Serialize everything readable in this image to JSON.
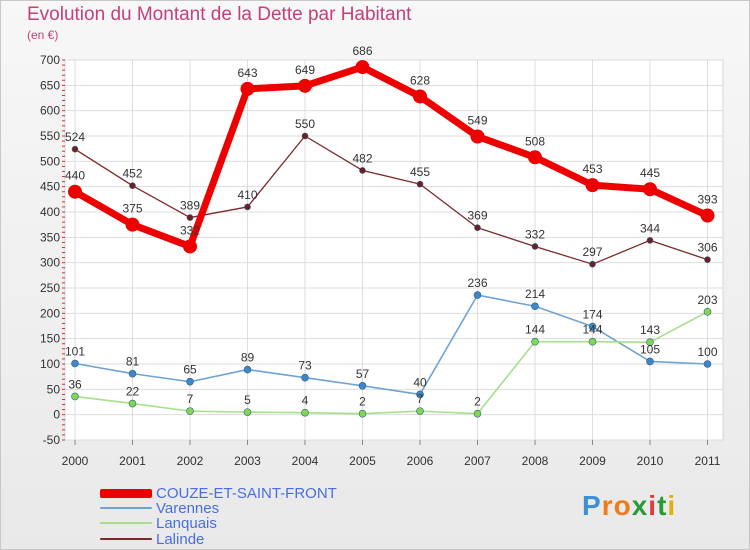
{
  "title": "Evolution du Montant de la Dette par Habitant",
  "unit_label": "(en €)",
  "logo": {
    "letters": [
      "P",
      "r",
      "o",
      "x",
      "i",
      "t",
      "i"
    ],
    "colors": [
      "#3c8fd8",
      "#f07b1a",
      "#f07b1a",
      "#2a9b3a",
      "#e03a3a",
      "#2a9b3a",
      "#e0b010"
    ]
  },
  "chart_data": {
    "type": "line",
    "title": "Evolution du Montant de la Dette par Habitant",
    "ylabel": "(en €)",
    "xlabel": "",
    "x": [
      "2000",
      "2001",
      "2002",
      "2003",
      "2004",
      "2005",
      "2006",
      "2007",
      "2008",
      "2009",
      "2010",
      "2011"
    ],
    "ylim": [
      -50,
      700
    ],
    "yticks": [
      -50,
      0,
      50,
      100,
      150,
      200,
      250,
      300,
      350,
      400,
      450,
      500,
      550,
      600,
      650,
      700
    ],
    "grid": true,
    "legend_position": "bottom-left",
    "series": [
      {
        "name": "COUZE-ET-SAINT-FRONT",
        "color": "#ee0000",
        "dot": "#ee0000",
        "width": 7,
        "r": 7,
        "values": [
          440,
          375,
          332,
          643,
          649,
          686,
          628,
          549,
          508,
          453,
          445,
          393
        ],
        "labels": [
          "440",
          "375",
          "332",
          "643",
          "649",
          "686",
          "628",
          "549",
          "508",
          "453",
          "445",
          "393"
        ]
      },
      {
        "name": "Varennes",
        "color": "#6fa3d4",
        "dot": "#3f86c8",
        "width": 1.6,
        "r": 3.5,
        "values": [
          101,
          81,
          65,
          89,
          73,
          57,
          40,
          236,
          214,
          174,
          105,
          100
        ],
        "labels": [
          "101",
          "81",
          "65",
          "89",
          "73",
          "57",
          "40",
          "236",
          "214",
          "174",
          "105",
          "100"
        ]
      },
      {
        "name": "Lanquais",
        "color": "#a6e08a",
        "dot": "#82d655",
        "width": 1.6,
        "r": 3.5,
        "values": [
          36,
          22,
          7,
          5,
          4,
          2,
          7,
          2,
          144,
          144,
          143,
          203
        ],
        "labels": [
          "36",
          "22",
          "7",
          "5",
          "4",
          "2",
          "7",
          "2",
          "144",
          "144",
          "143",
          "203"
        ]
      },
      {
        "name": "Lalinde",
        "color": "#7a2a2a",
        "dot": "#6e1f1f",
        "width": 1.3,
        "r": 3,
        "values": [
          524,
          452,
          389,
          410,
          550,
          482,
          455,
          369,
          332,
          297,
          344,
          306
        ],
        "labels": [
          "524",
          "452",
          "389",
          "410",
          "550",
          "482",
          "455",
          "369",
          "332",
          "297",
          "344",
          "306"
        ]
      }
    ]
  }
}
